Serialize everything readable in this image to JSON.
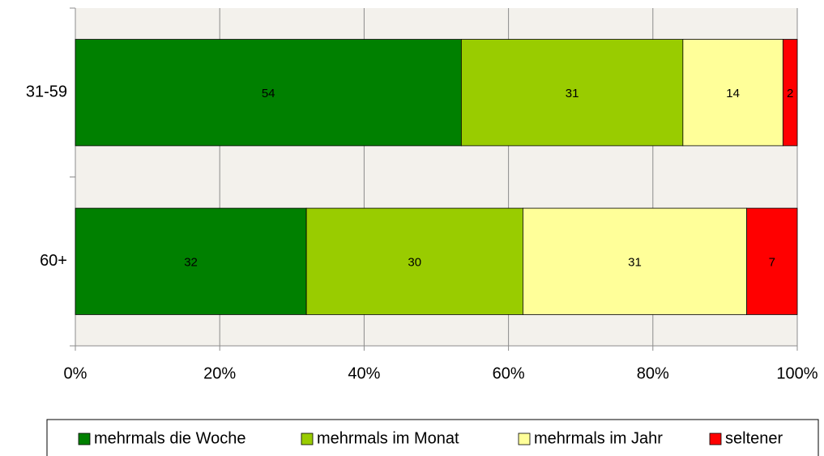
{
  "chart_data": {
    "type": "bar",
    "orientation": "horizontal",
    "stacked": "percent",
    "categories": [
      "31-59",
      "60+"
    ],
    "series": [
      {
        "name": "mehrmals die Woche",
        "color": "#008000",
        "values": [
          54,
          32
        ]
      },
      {
        "name": "mehrmals im Monat",
        "color": "#99cc00",
        "values": [
          31,
          30
        ]
      },
      {
        "name": "mehrmals im Jahr",
        "color": "#ffff99",
        "values": [
          14,
          31
        ]
      },
      {
        "name": "seltener",
        "color": "#ff0000",
        "values": [
          2,
          7
        ]
      }
    ],
    "xlim": [
      0,
      100
    ],
    "xticks": [
      {
        "value": 0,
        "label": "0%"
      },
      {
        "value": 20,
        "label": "20%"
      },
      {
        "value": 40,
        "label": "40%"
      },
      {
        "value": 60,
        "label": "60%"
      },
      {
        "value": 80,
        "label": "80%"
      },
      {
        "value": 100,
        "label": "100%"
      }
    ],
    "grid": true,
    "legend": "bottom"
  }
}
